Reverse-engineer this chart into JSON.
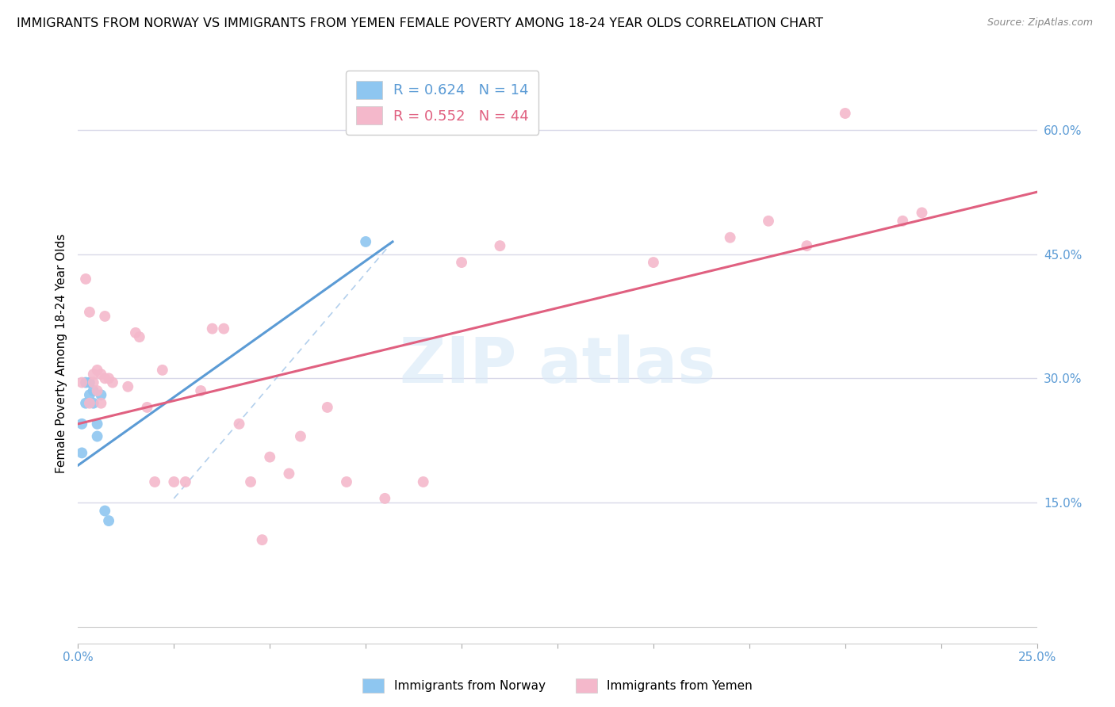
{
  "title": "IMMIGRANTS FROM NORWAY VS IMMIGRANTS FROM YEMEN FEMALE POVERTY AMONG 18-24 YEAR OLDS CORRELATION CHART",
  "source": "Source: ZipAtlas.com",
  "ylabel": "Female Poverty Among 18-24 Year Olds",
  "xlim": [
    0.0,
    0.25
  ],
  "ylim": [
    -0.02,
    0.68
  ],
  "xticks": [
    0.0,
    0.025,
    0.05,
    0.075,
    0.1,
    0.125,
    0.15,
    0.175,
    0.2,
    0.225,
    0.25
  ],
  "xticklabels": [
    "0.0%",
    "",
    "",
    "",
    "",
    "",
    "",
    "",
    "",
    "",
    "25.0%"
  ],
  "ytick_positions": [
    0.15,
    0.3,
    0.45,
    0.6
  ],
  "ytick_labels": [
    "15.0%",
    "30.0%",
    "45.0%",
    "60.0%"
  ],
  "norway_color": "#8ec6f0",
  "norway_color_dark": "#5b9bd5",
  "yemen_color": "#f4b8cb",
  "yemen_color_dark": "#e06080",
  "norway_R": 0.624,
  "norway_N": 14,
  "yemen_R": 0.552,
  "yemen_N": 44,
  "norway_scatter_x": [
    0.001,
    0.001,
    0.002,
    0.002,
    0.003,
    0.003,
    0.004,
    0.004,
    0.005,
    0.005,
    0.006,
    0.007,
    0.008,
    0.075
  ],
  "norway_scatter_y": [
    0.245,
    0.21,
    0.295,
    0.27,
    0.28,
    0.295,
    0.27,
    0.285,
    0.245,
    0.23,
    0.28,
    0.14,
    0.128,
    0.465
  ],
  "yemen_scatter_x": [
    0.001,
    0.002,
    0.003,
    0.003,
    0.004,
    0.004,
    0.005,
    0.005,
    0.006,
    0.006,
    0.007,
    0.007,
    0.008,
    0.009,
    0.013,
    0.015,
    0.016,
    0.018,
    0.02,
    0.022,
    0.025,
    0.028,
    0.032,
    0.035,
    0.038,
    0.042,
    0.045,
    0.048,
    0.05,
    0.055,
    0.058,
    0.065,
    0.07,
    0.08,
    0.09,
    0.1,
    0.11,
    0.15,
    0.17,
    0.18,
    0.19,
    0.2,
    0.215,
    0.22
  ],
  "yemen_scatter_y": [
    0.295,
    0.42,
    0.38,
    0.27,
    0.305,
    0.295,
    0.31,
    0.285,
    0.305,
    0.27,
    0.375,
    0.3,
    0.3,
    0.295,
    0.29,
    0.355,
    0.35,
    0.265,
    0.175,
    0.31,
    0.175,
    0.175,
    0.285,
    0.36,
    0.36,
    0.245,
    0.175,
    0.105,
    0.205,
    0.185,
    0.23,
    0.265,
    0.175,
    0.155,
    0.175,
    0.44,
    0.46,
    0.44,
    0.47,
    0.49,
    0.46,
    0.62,
    0.49,
    0.5
  ],
  "norway_line_x": [
    0.0,
    0.082
  ],
  "norway_line_y": [
    0.195,
    0.465
  ],
  "yemen_line_x": [
    0.0,
    0.25
  ],
  "yemen_line_y": [
    0.245,
    0.525
  ],
  "ref_line_x": [
    0.025,
    0.082
  ],
  "ref_line_y": [
    0.155,
    0.465
  ],
  "background_color": "#ffffff",
  "grid_color": "#d8d8e8",
  "title_fontsize": 11.5,
  "label_fontsize": 11,
  "tick_fontsize": 11,
  "marker_size": 100
}
